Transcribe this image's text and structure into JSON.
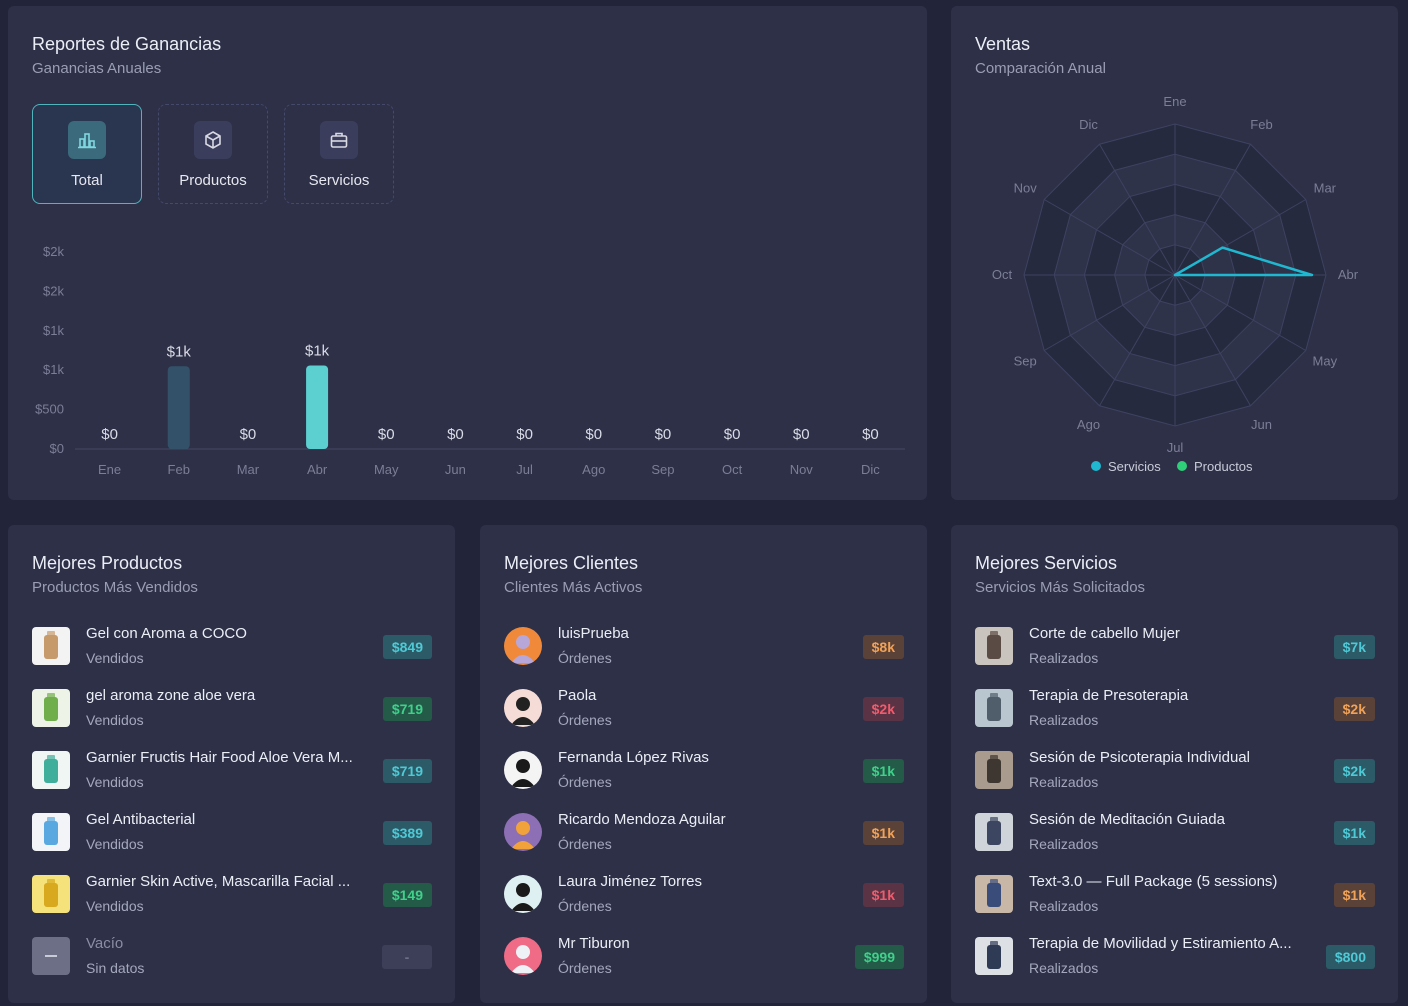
{
  "earnings": {
    "title": "Reportes de Ganancias",
    "subtitle": "Ganancias Anuales",
    "tabs": [
      {
        "label": "Total",
        "icon": "bar-chart-icon",
        "active": true
      },
      {
        "label": "Productos",
        "icon": "box-icon",
        "active": false
      },
      {
        "label": "Servicios",
        "icon": "briefcase-icon",
        "active": false
      }
    ]
  },
  "chart_data": [
    {
      "type": "bar",
      "categories": [
        "Ene",
        "Feb",
        "Mar",
        "Abr",
        "May",
        "Jun",
        "Jul",
        "Ago",
        "Sep",
        "Oct",
        "Nov",
        "Dic"
      ],
      "values": [
        0,
        1050,
        0,
        1060,
        0,
        0,
        0,
        0,
        0,
        0,
        0,
        0
      ],
      "data_labels": [
        "$0",
        "$1k",
        "$0",
        "$1k",
        "$0",
        "$0",
        "$0",
        "$0",
        "$0",
        "$0",
        "$0",
        "$0"
      ],
      "yticks": [
        "$0",
        "$500",
        "$1k",
        "$1k",
        "$2k",
        "$2k"
      ],
      "ylim": [
        0,
        2500
      ],
      "grid": false,
      "colors": {
        "highlight": "#5ccfd0",
        "muted": "#33526a",
        "axis": "#454961",
        "tick": "#7b7e96",
        "label": "#d9dbe6"
      }
    },
    {
      "type": "radar",
      "title": "Ventas",
      "subtitle": "Comparación Anual",
      "categories": [
        "Ene",
        "Feb",
        "Mar",
        "Abr",
        "May",
        "Jun",
        "Jul",
        "Ago",
        "Sep",
        "Oct",
        "Nov",
        "Dic"
      ],
      "series": [
        {
          "name": "Servicios",
          "color": "#1fb8d0",
          "values": [
            0,
            0,
            0.4,
            1,
            0,
            0,
            0,
            0,
            0,
            0,
            0,
            0
          ]
        },
        {
          "name": "Productos",
          "color": "#2fcf7a",
          "values": [
            0,
            0,
            0,
            0,
            0,
            0,
            0,
            0,
            0,
            0,
            0,
            0
          ]
        }
      ],
      "legend": "bottom"
    }
  ],
  "productos": {
    "title": "Mejores Productos",
    "subtitle": "Productos Más Vendidos",
    "items": [
      {
        "name": "Gel con Aroma a COCO",
        "meta": "Vendidos",
        "value": "$849",
        "badge": "teal",
        "thumb": "bottle-icon",
        "bg": "#f3f3f3",
        "fg": "#c79a6b"
      },
      {
        "name": "gel aroma zone aloe vera",
        "meta": "Vendidos",
        "value": "$719",
        "badge": "green",
        "thumb": "aloe-icon",
        "bg": "#eef3e8",
        "fg": "#6fae4a"
      },
      {
        "name": "Garnier Fructis Hair Food Aloe Vera M...",
        "meta": "Vendidos",
        "value": "$719",
        "badge": "teal",
        "thumb": "jar-icon",
        "bg": "#f0f6f4",
        "fg": "#3fae9a"
      },
      {
        "name": "Gel Antibacterial",
        "meta": "Vendidos",
        "value": "$389",
        "badge": "teal",
        "thumb": "sanitizer-icon",
        "bg": "#f2f4f7",
        "fg": "#5aa8e0"
      },
      {
        "name": "Garnier Skin Active, Mascarilla Facial ...",
        "meta": "Vendidos",
        "value": "$149",
        "badge": "green",
        "thumb": "mask-icon",
        "bg": "#f6e27a",
        "fg": "#d8a81e"
      },
      {
        "name": "Vacío",
        "meta": "Sin datos",
        "value": "-",
        "badge": "empty",
        "thumb": "minus-icon",
        "bg": "#6c6f86",
        "fg": "#c9cbd8"
      }
    ]
  },
  "clientes": {
    "title": "Mejores Clientes",
    "subtitle": "Clientes Más Activos",
    "items": [
      {
        "name": "luisPrueba",
        "meta": "Órdenes",
        "value": "$8k",
        "badge": "orange",
        "thumb": "elephant-avatar-icon",
        "bg": "#f08a3a",
        "fg": "#b7a7d8"
      },
      {
        "name": "Paola",
        "meta": "Órdenes",
        "value": "$2k",
        "badge": "red",
        "thumb": "woman-avatar-icon",
        "bg": "#f6dcd6",
        "fg": "#222222"
      },
      {
        "name": "Fernanda López Rivas",
        "meta": "Órdenes",
        "value": "$1k",
        "badge": "green",
        "thumb": "cow-avatar-icon",
        "bg": "#f4f4f4",
        "fg": "#1a1a1a"
      },
      {
        "name": "Ricardo Mendoza Aguilar",
        "meta": "Órdenes",
        "value": "$1k",
        "badge": "orange",
        "thumb": "lion-avatar-icon",
        "bg": "#8d6fb5",
        "fg": "#f2a23a"
      },
      {
        "name": "Laura Jiménez Torres",
        "meta": "Órdenes",
        "value": "$1k",
        "badge": "red",
        "thumb": "girl-avatar-icon",
        "bg": "#dff0f2",
        "fg": "#1a1a1a"
      },
      {
        "name": "Mr Tiburon",
        "meta": "Órdenes",
        "value": "$999",
        "badge": "green",
        "thumb": "shark-avatar-icon",
        "bg": "#ef6b86",
        "fg": "#eef2f6"
      }
    ]
  },
  "servicios": {
    "title": "Mejores Servicios",
    "subtitle": "Servicios Más Solicitados",
    "items": [
      {
        "name": "Corte de cabello Mujer",
        "meta": "Realizados",
        "value": "$7k",
        "badge": "teal",
        "thumb": "haircut-photo-icon",
        "bg": "#c9c4bd",
        "fg": "#5a4c44"
      },
      {
        "name": "Terapia de Presoterapia",
        "meta": "Realizados",
        "value": "$2k",
        "badge": "orange",
        "thumb": "therapy-photo-icon",
        "bg": "#b9c6cf",
        "fg": "#4f5e6a"
      },
      {
        "name": "Sesión de Psicoterapia Individual",
        "meta": "Realizados",
        "value": "$2k",
        "badge": "teal",
        "thumb": "psychotherapy-photo-icon",
        "bg": "#a99b8e",
        "fg": "#3e3630"
      },
      {
        "name": "Sesión de Meditación Guiada",
        "meta": "Realizados",
        "value": "$1k",
        "badge": "teal",
        "thumb": "meditation-photo-icon",
        "bg": "#cfd4da",
        "fg": "#3c4660"
      },
      {
        "name": "Text-3.0 — Full Package (5 sessions)",
        "meta": "Realizados",
        "value": "$1k",
        "badge": "orange",
        "thumb": "package-photo-icon",
        "bg": "#c8b7a6",
        "fg": "#3a4c7a"
      },
      {
        "name": "Terapia de Movilidad y Estiramiento A...",
        "meta": "Realizados",
        "value": "$800",
        "badge": "teal",
        "thumb": "mobility-photo-icon",
        "bg": "#dde1e6",
        "fg": "#2f3b55"
      }
    ]
  }
}
